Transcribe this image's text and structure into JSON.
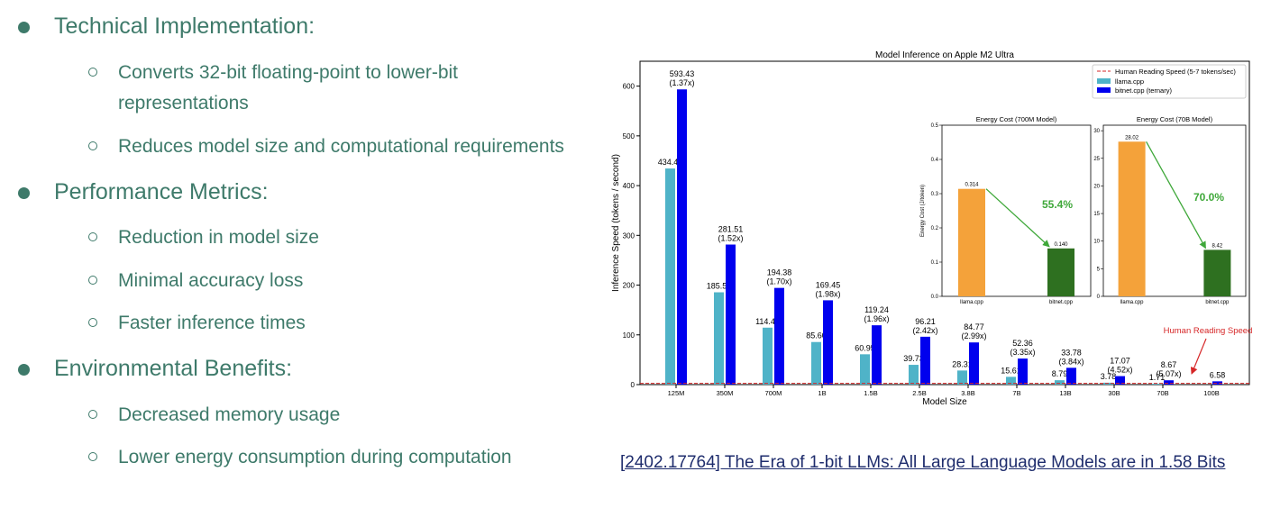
{
  "slide": {
    "bullets": [
      {
        "text": "Technical Implementation:",
        "subs": [
          "Converts 32-bit floating-point to lower-bit",
          "representations",
          "Reduces model size and computational requirements"
        ]
      },
      {
        "text": "Performance Metrics:",
        "subs": [
          "Reduction in model size",
          "Minimal accuracy loss",
          "Faster inference times"
        ]
      },
      {
        "text": "Environmental Benefits:",
        "subs": [
          "Decreased memory usage",
          "Lower energy consumption during computation"
        ]
      }
    ],
    "citation": "[2402.17764] The Era of 1-bit LLMs: All Large Language Models are in 1.58 Bits"
  },
  "chart_data": [
    {
      "type": "bar",
      "title": "Model Inference on Apple M2 Ultra",
      "xlabel": "Model Size",
      "ylabel": "Inference Speed (tokens / second)",
      "ylim": [
        0,
        650
      ],
      "yticks": [
        0,
        100,
        200,
        300,
        400,
        500,
        600
      ],
      "categories": [
        "125M",
        "350M",
        "700M",
        "1B",
        "1.5B",
        "2.5B",
        "3.8B",
        "7B",
        "13B",
        "30B",
        "70B",
        "100B"
      ],
      "series": [
        {
          "name": "llama.cpp",
          "color": "#4fb3c8",
          "values": [
            434.4,
            185.56,
            114.47,
            85.6,
            60.95,
            39.73,
            28.31,
            15.61,
            8.79,
            3.78,
            1.71,
            null
          ],
          "labels": [
            "434.40",
            "185.56",
            "114.47",
            "85.60",
            "60.95",
            "39.73",
            "28.31",
            "15.61",
            "8.79",
            "3.78",
            "1.71",
            ""
          ]
        },
        {
          "name": "bitnet.cpp (ternary)",
          "color": "#0000ee",
          "values": [
            593.43,
            281.51,
            194.38,
            169.45,
            119.24,
            96.21,
            84.77,
            52.36,
            33.78,
            17.07,
            8.67,
            6.58
          ],
          "labels": [
            "593.43",
            "281.51",
            "194.38",
            "169.45",
            "119.24",
            "96.21",
            "84.77",
            "52.36",
            "33.78",
            "17.07",
            "8.67",
            "6.58"
          ],
          "speedups": [
            "(1.37x)",
            "(1.52x)",
            "(1.70x)",
            "(1.98x)",
            "(1.96x)",
            "(2.42x)",
            "(2.99x)",
            "(3.35x)",
            "(3.84x)",
            "(4.52x)",
            "(5.07x)",
            ""
          ]
        }
      ],
      "reference_line": {
        "value": 6,
        "label": "Human Reading Speed (5-7 tokens/sec)",
        "color": "#d62728"
      },
      "annotation": {
        "text": "Human Reading Speed",
        "color": "#d62728"
      },
      "legend": "top-right",
      "grid": false
    },
    {
      "type": "bar",
      "title": "Energy Cost (700M Model)",
      "ylabel": "Energy Cost (J/token)",
      "ylim": [
        0,
        0.5
      ],
      "yticks": [
        "0.0",
        "0.1",
        "0.2",
        "0.3",
        "0.4",
        "0.5"
      ],
      "categories": [
        "llama.cpp",
        "bitnet.cpp"
      ],
      "values": [
        0.314,
        0.14
      ],
      "labels": [
        "0.314",
        "0.140"
      ],
      "colors": [
        "#f4a23a",
        "#2e7020"
      ],
      "reduction": "55.4%"
    },
    {
      "type": "bar",
      "title": "Energy Cost (70B Model)",
      "ylim": [
        0,
        31
      ],
      "yticks": [
        "0",
        "5",
        "10",
        "15",
        "20",
        "25",
        "30"
      ],
      "categories": [
        "llama.cpp",
        "bitnet.cpp"
      ],
      "values": [
        28.02,
        8.42
      ],
      "labels": [
        "28.02",
        "8.42"
      ],
      "colors": [
        "#f4a23a",
        "#2e7020"
      ],
      "reduction": "70.0%"
    }
  ]
}
